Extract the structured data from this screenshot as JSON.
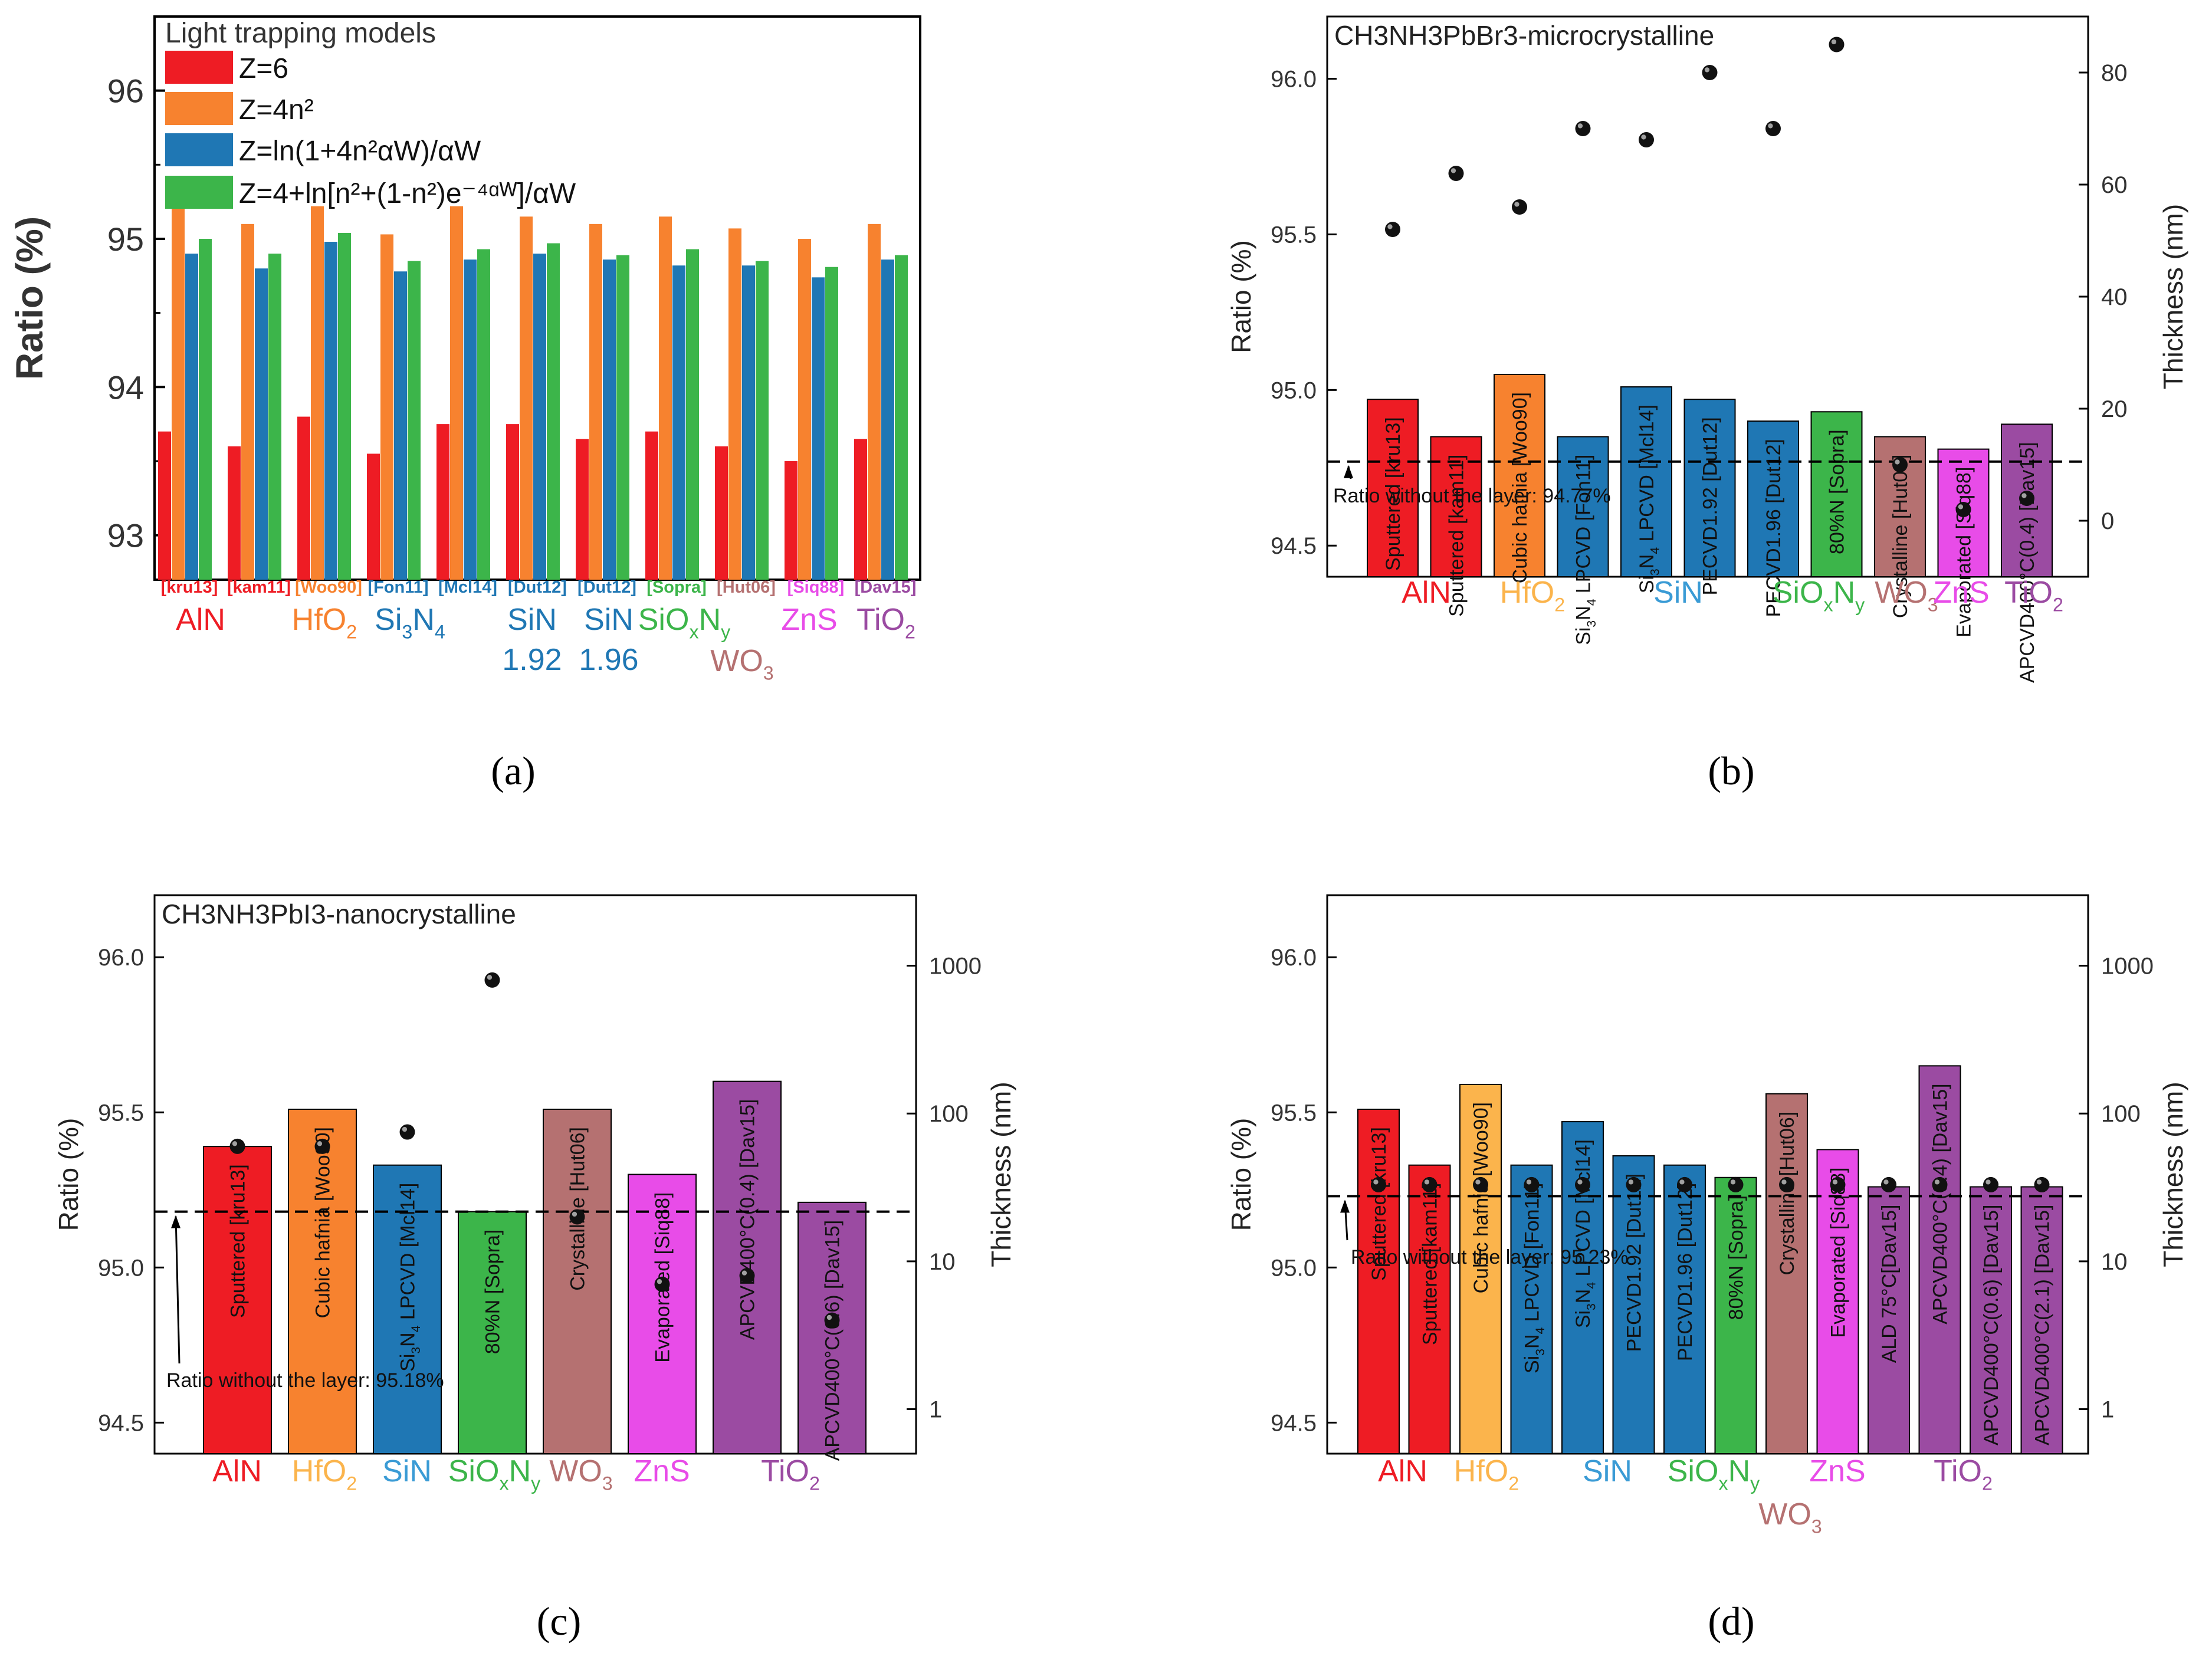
{
  "colors": {
    "red": "#ee1c24",
    "orange": "#f7822f",
    "blue": "#1f77b4",
    "green": "#3cb54a",
    "brown": "#b57171",
    "magenta": "#e84ce8",
    "purple": "#9b4ba2",
    "lightorange": "#fbb44c",
    "lightblue": "#3a9bd5"
  },
  "chart_data": [
    {
      "id": "a",
      "type": "bar",
      "panel_label": "(a)",
      "ylabel": "Ratio (%)",
      "ylim": [
        92.7,
        96.5
      ],
      "yticks": [
        93,
        94,
        95,
        96
      ],
      "legend_title": "Light trapping models",
      "series": [
        {
          "name": "Z=6",
          "color": "red",
          "values": [
            93.7,
            93.6,
            93.8,
            93.55,
            93.75,
            93.75,
            93.65,
            93.7,
            93.6,
            93.5,
            93.65
          ]
        },
        {
          "name": "Z=4n²",
          "color": "orange",
          "values": [
            95.25,
            95.1,
            95.22,
            95.03,
            95.22,
            95.15,
            95.1,
            95.15,
            95.07,
            95.0,
            95.1
          ]
        },
        {
          "name": "Z=ln(1+4n²αW)/αW",
          "color": "blue",
          "values": [
            94.9,
            94.8,
            94.98,
            94.78,
            94.86,
            94.9,
            94.86,
            94.82,
            94.82,
            94.74,
            94.86
          ]
        },
        {
          "name": "Z=4+ln[n²+(1-n²)e⁻⁴ᵅᵂ]/αW",
          "color": "green",
          "values": [
            95.0,
            94.9,
            95.04,
            94.85,
            94.93,
            94.97,
            94.89,
            94.93,
            94.85,
            94.81,
            94.89
          ]
        }
      ],
      "refs": [
        {
          "text": "[kru13]",
          "color": "red"
        },
        {
          "text": "[kam11]",
          "color": "red"
        },
        {
          "text": "[Woo90]",
          "color": "orange"
        },
        {
          "text": "[Fon11]",
          "color": "blue"
        },
        {
          "text": "[Mcl14]",
          "color": "blue"
        },
        {
          "text": "[Dut12]",
          "color": "blue"
        },
        {
          "text": "[Dut12]",
          "color": "blue"
        },
        {
          "text": "[Sopra]",
          "color": "green"
        },
        {
          "text": "[Hut06]",
          "color": "brown"
        },
        {
          "text": "[Siq88]",
          "color": "magenta"
        },
        {
          "text": "[Dav15]",
          "color": "purple"
        }
      ],
      "materials": [
        {
          "text": "AlN",
          "color": "red"
        },
        {
          "text": "HfO",
          "sub": "2",
          "color": "orange"
        },
        {
          "text": "Si",
          "sub": "3",
          "after": "N",
          "sub2": "4",
          "color": "blue"
        },
        {
          "text": "SiN",
          "line2": "1.92",
          "color": "blue"
        },
        {
          "text": "SiN",
          "line2": "1.96",
          "color": "blue"
        },
        {
          "text": "SiO",
          "sub": "x",
          "after": "N",
          "sub2": "y",
          "color": "green"
        },
        {
          "text": "WO",
          "sub": "3",
          "color": "brown"
        },
        {
          "text": "ZnS",
          "color": "magenta"
        },
        {
          "text": "TiO",
          "sub": "2",
          "color": "purple"
        }
      ]
    },
    {
      "id": "b",
      "type": "bar",
      "panel_label": "(b)",
      "title": "CH3NH3PbBr3-microcrystalline",
      "ylabel": "Ratio (%)",
      "y2label": "Thickness (nm)",
      "ylim": [
        94.4,
        96.2
      ],
      "yticks": [
        94.5,
        95.0,
        95.5,
        96.0
      ],
      "y2lim": [
        -10,
        90
      ],
      "y2ticks": [
        0,
        20,
        40,
        60,
        80
      ],
      "baseline": 94.77,
      "baseline_label": "Ratio without the layer: 94.77%",
      "bars": [
        {
          "label": "Sputtered [kru13]",
          "value": 94.97,
          "thickness": 52,
          "color": "red"
        },
        {
          "label": "Sputtered [kam11]",
          "value": 94.85,
          "thickness": 62,
          "color": "red"
        },
        {
          "label": "Cubic hafnia [Woo90]",
          "value": 95.05,
          "thickness": 56,
          "color": "orange"
        },
        {
          "label": "Si3N4 LPCVD [Fon11]",
          "value": 94.85,
          "thickness": 70,
          "color": "blue"
        },
        {
          "label": "Si3N4 LPCVD [Mcl14]",
          "value": 95.01,
          "thickness": 68,
          "color": "blue"
        },
        {
          "label": "PECVD1.92 [Dut12]",
          "value": 94.97,
          "thickness": 80,
          "color": "blue"
        },
        {
          "label": "PECVD1.96 [Dut12]",
          "value": 94.9,
          "thickness": 70,
          "color": "blue"
        },
        {
          "label": "80%N [Sopra]",
          "value": 94.93,
          "thickness": 85,
          "color": "green"
        },
        {
          "label": "Crystalline [Hut06]",
          "value": 94.85,
          "thickness": 10,
          "color": "brown"
        },
        {
          "label": "Evaporated [Siq88]",
          "value": 94.81,
          "thickness": 2,
          "color": "magenta"
        },
        {
          "label": "APCVD400°C(0.4) [Dav15]",
          "value": 94.89,
          "thickness": 4,
          "color": "purple"
        }
      ],
      "materials": [
        {
          "text": "AlN",
          "color": "red"
        },
        {
          "text": "HfO",
          "sub": "2",
          "color": "lightorange"
        },
        {
          "text": "SiN",
          "color": "lightblue"
        },
        {
          "text": "SiO",
          "sub": "x",
          "after": "N",
          "sub2": "y",
          "color": "green"
        },
        {
          "text": "WO",
          "sub": "3",
          "color": "brown"
        },
        {
          "text": "ZnS",
          "color": "magenta"
        },
        {
          "text": "TiO",
          "sub": "2",
          "color": "purple"
        }
      ]
    },
    {
      "id": "c",
      "type": "bar",
      "panel_label": "(c)",
      "title": "CH3NH3PbI3-nanocrystalline",
      "ylabel": "Ratio (%)",
      "y2label": "Thickness (nm)",
      "ylim": [
        94.4,
        96.2
      ],
      "yticks": [
        94.5,
        95.0,
        95.5,
        96.0
      ],
      "y2scale": "log",
      "y2lim": [
        0.5,
        3000
      ],
      "y2ticks": [
        1,
        10,
        100,
        1000
      ],
      "baseline": 95.18,
      "baseline_label": "Ratio without the layer: 95.18%",
      "bars": [
        {
          "label": "Sputtered [kru13]",
          "value": 95.39,
          "thickness": 60,
          "color": "red"
        },
        {
          "label": "Cubic hafnia [Woo90]",
          "value": 95.51,
          "thickness": 60,
          "color": "orange"
        },
        {
          "label": "Si3N4 LPCVD [Mcl14]",
          "value": 95.33,
          "thickness": 75,
          "color": "blue"
        },
        {
          "label": "80%N [Sopra]",
          "value": 95.18,
          "thickness": 800,
          "color": "green"
        },
        {
          "label": "Crystalline [Hut06]",
          "value": 95.51,
          "thickness": 20,
          "color": "brown"
        },
        {
          "label": "Evaporated [Siq88]",
          "value": 95.3,
          "thickness": 7,
          "color": "magenta"
        },
        {
          "label": "APCVD400°C(0.4) [Dav15]",
          "value": 95.6,
          "thickness": 8,
          "color": "purple"
        },
        {
          "label": "APCVD400°C(0.6) [Dav15]",
          "value": 95.21,
          "thickness": 4,
          "color": "purple"
        }
      ],
      "materials": [
        {
          "text": "AlN",
          "color": "red"
        },
        {
          "text": "HfO",
          "sub": "2",
          "color": "lightorange"
        },
        {
          "text": "SiN",
          "color": "lightblue"
        },
        {
          "text": "SiO",
          "sub": "x",
          "after": "N",
          "sub2": "y",
          "color": "green"
        },
        {
          "text": "WO",
          "sub": "3",
          "color": "brown"
        },
        {
          "text": "ZnS",
          "color": "magenta"
        },
        {
          "text": "TiO",
          "sub": "2",
          "color": "purple"
        }
      ]
    },
    {
      "id": "d",
      "type": "bar",
      "panel_label": "(d)",
      "ylabel": "Ratio (%)",
      "y2label": "Thickness (nm)",
      "ylim": [
        94.4,
        96.2
      ],
      "yticks": [
        94.5,
        95.0,
        95.5,
        96.0
      ],
      "y2scale": "log",
      "y2lim": [
        0.5,
        3000
      ],
      "y2ticks": [
        1,
        10,
        100,
        1000
      ],
      "baseline": 95.23,
      "baseline_label": "Ratio without the layer: 95.23%",
      "bars": [
        {
          "label": "Sputtered [kru13]",
          "value": 95.51,
          "thickness": 33,
          "color": "red"
        },
        {
          "label": "Sputtered [kam11]",
          "value": 95.33,
          "thickness": 33,
          "color": "red"
        },
        {
          "label": "Cubic hafnia [Woo90]",
          "value": 95.59,
          "thickness": 33,
          "color": "lightorange"
        },
        {
          "label": "Si3N4 LPCVD [Fon11]",
          "value": 95.33,
          "thickness": 33,
          "color": "blue"
        },
        {
          "label": "Si3N4 LPCVD [Mcl14]",
          "value": 95.47,
          "thickness": 33,
          "color": "blue"
        },
        {
          "label": "PECVD1.92 [Dut12]",
          "value": 95.36,
          "thickness": 33,
          "color": "blue"
        },
        {
          "label": "PECVD1.96 [Dut12]",
          "value": 95.33,
          "thickness": 33,
          "color": "blue"
        },
        {
          "label": "80%N [Sopra]",
          "value": 95.29,
          "thickness": 33,
          "color": "green"
        },
        {
          "label": "Crystalline [Hut06]",
          "value": 95.56,
          "thickness": 33,
          "color": "brown"
        },
        {
          "label": "Evaporated [Siq88]",
          "value": 95.38,
          "thickness": 33,
          "color": "magenta"
        },
        {
          "label": "ALD 75°C[Dav15]",
          "value": 95.26,
          "thickness": 33,
          "color": "purple"
        },
        {
          "label": "APCVD400°C(0.4) [Dav15]",
          "value": 95.65,
          "thickness": 33,
          "color": "purple"
        },
        {
          "label": "APCVD400°C(0.6) [Dav15]",
          "value": 95.26,
          "thickness": 33,
          "color": "purple"
        },
        {
          "label": "APCVD400°C(2.1) [Dav15]",
          "value": 95.26,
          "thickness": 33,
          "color": "purple"
        }
      ],
      "materials": [
        {
          "text": "AlN",
          "color": "red"
        },
        {
          "text": "HfO",
          "sub": "2",
          "color": "lightorange"
        },
        {
          "text": "SiN",
          "color": "lightblue"
        },
        {
          "text": "SiO",
          "sub": "x",
          "after": "N",
          "sub2": "y",
          "color": "green"
        },
        {
          "text": "WO",
          "sub": "3",
          "color": "brown"
        },
        {
          "text": "ZnS",
          "color": "magenta"
        },
        {
          "text": "TiO",
          "sub": "2",
          "color": "purple"
        }
      ]
    }
  ]
}
